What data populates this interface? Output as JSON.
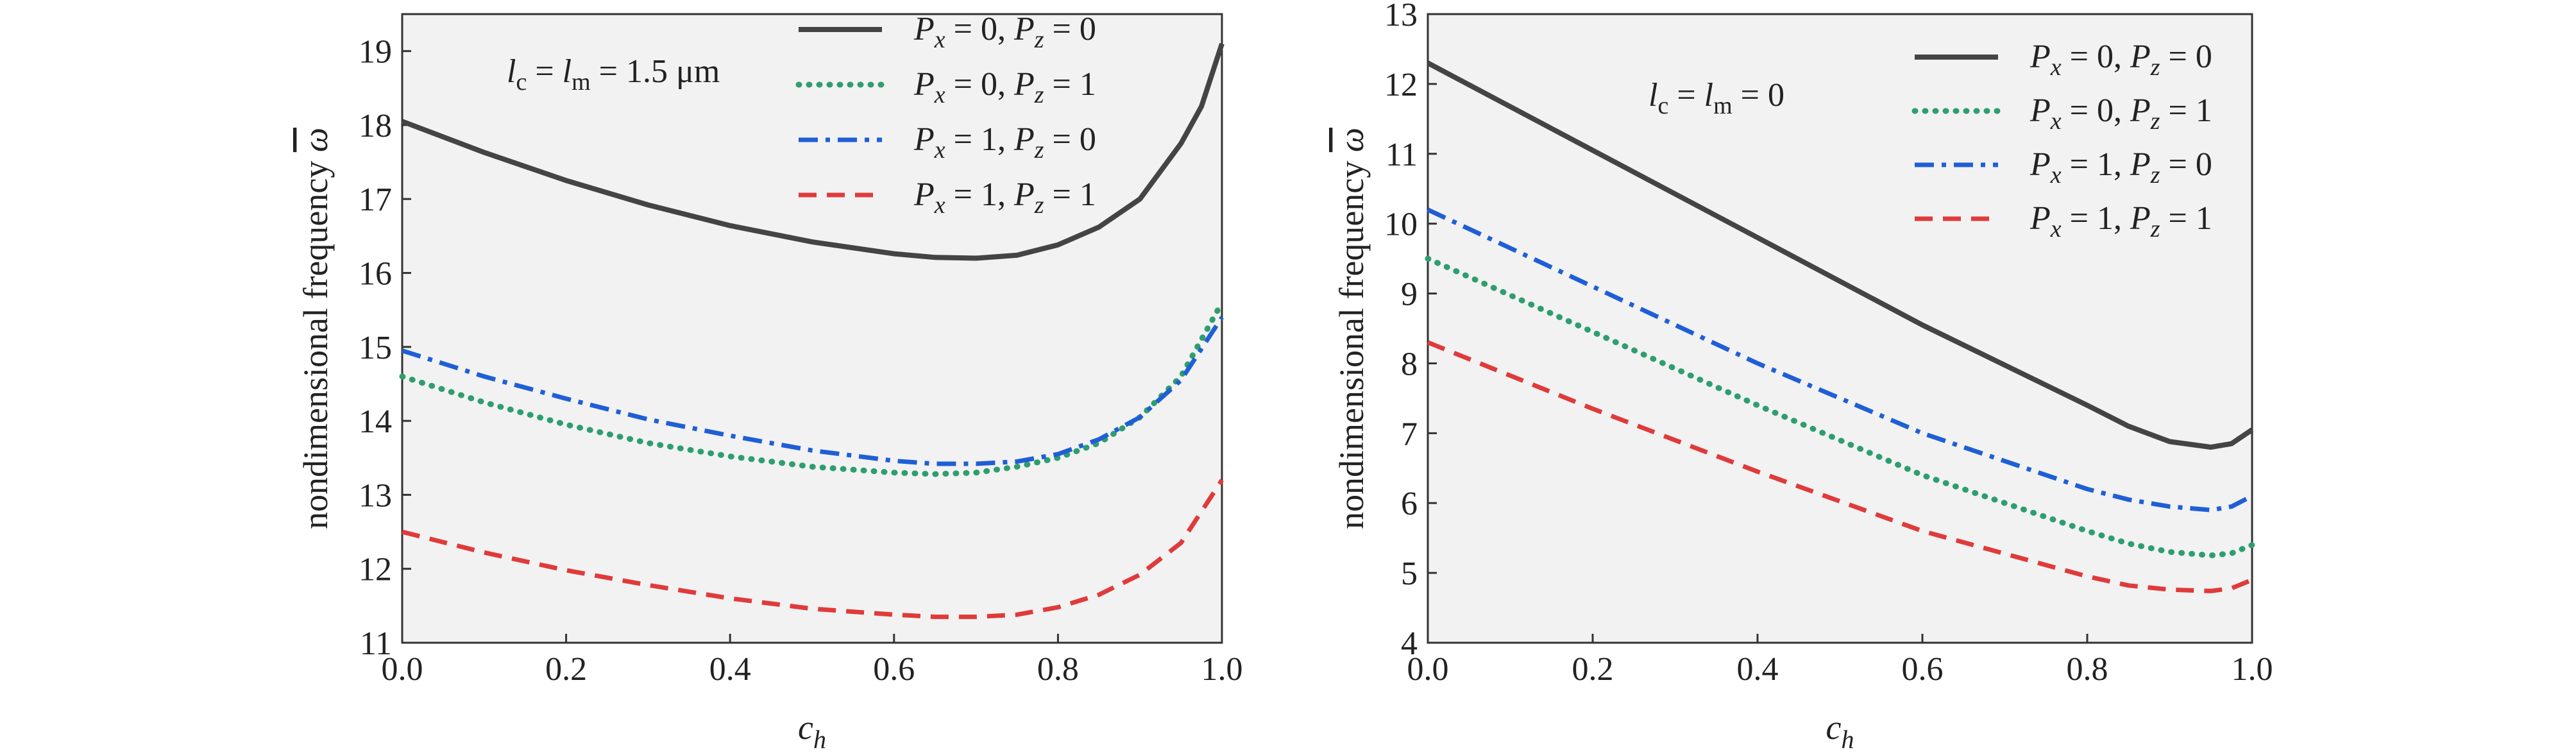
{
  "chart_data": [
    {
      "type": "line",
      "xlabel": "c",
      "xlabel_sub": "h",
      "ylabel": "nondimensional frequency ",
      "ylabel_symbol": "ω",
      "xlim": [
        0,
        1
      ],
      "ylim": [
        11,
        19.5
      ],
      "xticks": [
        0,
        0.2,
        0.4,
        0.6,
        0.8,
        1.0
      ],
      "xtick_labels": [
        "0.0",
        "0.2",
        "0.4",
        "0.6",
        "0.8",
        "1.0"
      ],
      "yticks": [
        11,
        12,
        13,
        14,
        15,
        16,
        17,
        18,
        19
      ],
      "ytick_labels": [
        "11",
        "12",
        "13",
        "14",
        "15",
        "16",
        "17",
        "18",
        "19"
      ],
      "annotation": {
        "l": "l",
        "c_sub": "c",
        "m_sub": "m",
        "eq": " = ",
        "value": "1.5 μm"
      },
      "legend_position": "top-right",
      "series": [
        {
          "name": "Px=0, Pz=0",
          "px": "0",
          "pz": "0",
          "style": "solid",
          "color": "#444444",
          "x": [
            0,
            0.1,
            0.2,
            0.3,
            0.4,
            0.5,
            0.6,
            0.65,
            0.7,
            0.75,
            0.8,
            0.85,
            0.9,
            0.95,
            0.975,
            1.0
          ],
          "values": [
            18.05,
            17.63,
            17.25,
            16.92,
            16.64,
            16.42,
            16.26,
            16.21,
            16.2,
            16.24,
            16.38,
            16.62,
            17.0,
            17.75,
            18.25,
            19.1
          ]
        },
        {
          "name": "Px=0, Pz=1",
          "px": "0",
          "pz": "1",
          "style": "dotted",
          "color": "#2e9e6e",
          "x": [
            0,
            0.1,
            0.2,
            0.3,
            0.4,
            0.5,
            0.6,
            0.65,
            0.7,
            0.75,
            0.8,
            0.85,
            0.9,
            0.95,
            1.0
          ],
          "values": [
            14.6,
            14.25,
            13.95,
            13.7,
            13.52,
            13.38,
            13.3,
            13.28,
            13.3,
            13.38,
            13.5,
            13.7,
            14.05,
            14.6,
            15.6
          ]
        },
        {
          "name": "Px=1, Pz=0",
          "px": "1",
          "pz": "0",
          "style": "dashdot",
          "color": "#1f5fd6",
          "x": [
            0,
            0.1,
            0.2,
            0.3,
            0.4,
            0.5,
            0.6,
            0.65,
            0.7,
            0.75,
            0.8,
            0.85,
            0.9,
            0.95,
            1.0
          ],
          "values": [
            14.95,
            14.6,
            14.3,
            14.02,
            13.8,
            13.6,
            13.46,
            13.42,
            13.42,
            13.45,
            13.55,
            13.75,
            14.05,
            14.55,
            15.4
          ]
        },
        {
          "name": "Px=1, Pz=1",
          "px": "1",
          "pz": "1",
          "style": "dashed",
          "color": "#e03a3a",
          "x": [
            0,
            0.1,
            0.2,
            0.3,
            0.4,
            0.5,
            0.6,
            0.65,
            0.7,
            0.75,
            0.8,
            0.85,
            0.9,
            0.95,
            1.0
          ],
          "values": [
            12.5,
            12.22,
            11.98,
            11.78,
            11.6,
            11.46,
            11.38,
            11.35,
            11.35,
            11.38,
            11.48,
            11.65,
            11.92,
            12.35,
            13.2
          ]
        }
      ]
    },
    {
      "type": "line",
      "xlabel": "c",
      "xlabel_sub": "h",
      "ylabel": "nondimensional frequency ",
      "ylabel_symbol": "ω",
      "xlim": [
        0,
        1
      ],
      "ylim": [
        4,
        13
      ],
      "xticks": [
        0,
        0.2,
        0.4,
        0.6,
        0.8,
        1.0
      ],
      "xtick_labels": [
        "0.0",
        "0.2",
        "0.4",
        "0.6",
        "0.8",
        "1.0"
      ],
      "yticks": [
        4,
        5,
        6,
        7,
        8,
        9,
        10,
        11,
        12,
        13
      ],
      "ytick_labels": [
        "4",
        "5",
        "6",
        "7",
        "8",
        "9",
        "10",
        "11",
        "12",
        "13"
      ],
      "annotation": {
        "l": "l",
        "c_sub": "c",
        "m_sub": "m",
        "eq": " = ",
        "value": "0"
      },
      "legend_position": "top-right",
      "series": [
        {
          "name": "Px=0, Pz=0",
          "px": "0",
          "pz": "0",
          "style": "solid",
          "color": "#444444",
          "x": [
            0,
            0.2,
            0.4,
            0.6,
            0.8,
            0.85,
            0.9,
            0.95,
            0.975,
            1.0
          ],
          "values": [
            12.3,
            11.05,
            9.8,
            8.55,
            7.4,
            7.1,
            6.88,
            6.8,
            6.85,
            7.05
          ]
        },
        {
          "name": "Px=0, Pz=1",
          "px": "0",
          "pz": "1",
          "style": "dotted",
          "color": "#2e9e6e",
          "x": [
            0,
            0.2,
            0.4,
            0.6,
            0.8,
            0.85,
            0.9,
            0.95,
            0.975,
            1.0
          ],
          "values": [
            9.5,
            8.45,
            7.4,
            6.4,
            5.6,
            5.42,
            5.3,
            5.25,
            5.28,
            5.4
          ]
        },
        {
          "name": "Px=1, Pz=0",
          "px": "1",
          "pz": "0",
          "style": "dashdot",
          "color": "#1f5fd6",
          "x": [
            0,
            0.2,
            0.4,
            0.6,
            0.8,
            0.85,
            0.9,
            0.95,
            0.975,
            1.0
          ],
          "values": [
            10.2,
            9.1,
            8.0,
            7.0,
            6.2,
            6.05,
            5.95,
            5.9,
            5.95,
            6.1
          ]
        },
        {
          "name": "Px=1, Pz=1",
          "px": "1",
          "pz": "1",
          "style": "dashed",
          "color": "#e03a3a",
          "x": [
            0,
            0.2,
            0.4,
            0.6,
            0.8,
            0.85,
            0.9,
            0.95,
            0.975,
            1.0
          ],
          "values": [
            8.3,
            7.35,
            6.45,
            5.6,
            4.95,
            4.82,
            4.76,
            4.74,
            4.78,
            4.9
          ]
        }
      ]
    }
  ]
}
